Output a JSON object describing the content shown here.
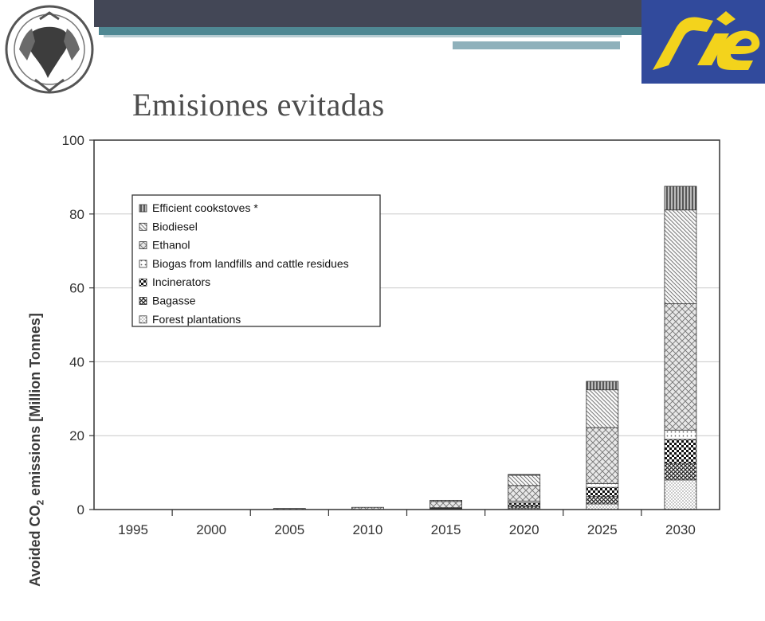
{
  "header": {
    "title": "Emisiones evitadas",
    "logos": [
      "unam-seal",
      "cie-logo"
    ]
  },
  "chart_data": {
    "type": "bar",
    "stacked": true,
    "title": "",
    "xlabel": "",
    "ylabel_main": "Avoided CO",
    "ylabel_sub": "2",
    "ylabel_rest": " emissions [Million Tonnes]",
    "ylim": [
      0,
      100
    ],
    "y_ticks": [
      0,
      20,
      40,
      60,
      80,
      100
    ],
    "grid": "horizontal",
    "legend_position": "top-left",
    "categories": [
      "1995",
      "2000",
      "2005",
      "2010",
      "2015",
      "2020",
      "2025",
      "2030"
    ],
    "series": [
      {
        "name": "Forest plantations",
        "pattern": "stipple",
        "values": [
          0,
          0,
          0,
          0,
          0.2,
          0.4,
          1.5,
          8.0
        ]
      },
      {
        "name": "Bagasse",
        "pattern": "crosshatch",
        "values": [
          0,
          0,
          0,
          0,
          0.1,
          0.6,
          2.0,
          4.5
        ]
      },
      {
        "name": "Incinerators",
        "pattern": "checker",
        "values": [
          0,
          0,
          0,
          0,
          0.1,
          0.8,
          2.5,
          6.5
        ]
      },
      {
        "name": "Biogas from landfills and cattle residues",
        "pattern": "dots",
        "values": [
          0,
          0,
          0,
          0,
          0.1,
          0.5,
          1.0,
          2.5
        ]
      },
      {
        "name": "Ethanol",
        "pattern": "herringbone",
        "values": [
          0,
          0,
          0.3,
          0.6,
          1.7,
          4.2,
          15.2,
          34.2
        ]
      },
      {
        "name": "Biodiesel",
        "pattern": "diagonal",
        "values": [
          0,
          0,
          0,
          0,
          0.3,
          2.8,
          10.2,
          25.4
        ]
      },
      {
        "name": "Efficient cookstoves *",
        "pattern": "vertical",
        "values": [
          0,
          0,
          0,
          0,
          0,
          0.2,
          2.3,
          6.4
        ]
      }
    ],
    "legend_order": [
      "Efficient cookstoves *",
      "Biodiesel",
      "Ethanol",
      "Biogas from landfills and cattle residues",
      "Incinerators",
      "Bagasse",
      "Forest plantations"
    ]
  }
}
